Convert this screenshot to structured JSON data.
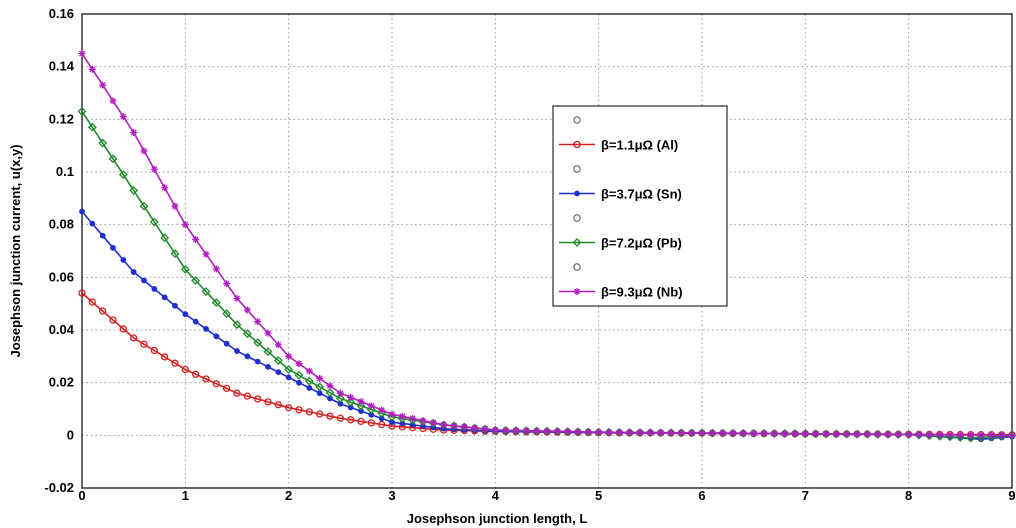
{
  "chart_data": {
    "type": "line",
    "xlabel": "Josephson junction length, L",
    "ylabel": "Josephson junction current, u(x,y)",
    "xlim": [
      0,
      9
    ],
    "ylim": [
      -0.02,
      0.16
    ],
    "xticks": [
      "0",
      "1",
      "2",
      "3",
      "4",
      "5",
      "6",
      "7",
      "8",
      "9"
    ],
    "yticks": [
      "-0.02",
      "0",
      "0.02",
      "0.04",
      "0.06",
      "0.08",
      "0.1",
      "0.12",
      "0.14",
      "0.16"
    ],
    "grid": true,
    "legend_placement": "center-right",
    "legend": [
      {
        "label": "",
        "marker": "open-circle"
      },
      {
        "label": "β=1.1μΩ (Al)",
        "marker": "square"
      },
      {
        "label": "",
        "marker": "open-circle"
      },
      {
        "label": "β=3.7μΩ (Sn)",
        "marker": "dot"
      },
      {
        "label": "",
        "marker": "open-circle"
      },
      {
        "label": "β=7.2μΩ (Pb)",
        "marker": "diamond"
      },
      {
        "label": "",
        "marker": "open-circle"
      },
      {
        "label": "β=9.3μΩ (Nb)",
        "marker": "star"
      }
    ],
    "series": [
      {
        "name": "β=1.1μΩ (Al)",
        "color": "#d42020",
        "x": [
          0,
          0.5,
          1,
          1.5,
          2,
          2.5,
          3,
          3.5,
          4,
          5,
          6,
          7,
          8,
          9
        ],
        "values": [
          0.054,
          0.037,
          0.025,
          0.016,
          0.0105,
          0.0065,
          0.0035,
          0.002,
          0.0015,
          0.001,
          0.0008,
          0.0006,
          0.0004,
          0.0002
        ]
      },
      {
        "name": "β=3.7μΩ (Sn)",
        "color": "#1f2fd0",
        "x": [
          0,
          0.5,
          1,
          1.5,
          2,
          2.5,
          3,
          3.5,
          4,
          5,
          6,
          7,
          8,
          8.7,
          9
        ],
        "values": [
          0.085,
          0.062,
          0.046,
          0.032,
          0.022,
          0.012,
          0.005,
          0.0025,
          0.0015,
          0.001,
          0.0008,
          0.0005,
          0.0003,
          -0.0015,
          -0.0005
        ]
      },
      {
        "name": "β=7.2μΩ (Pb)",
        "color": "#1e8a2a",
        "x": [
          0,
          0.5,
          1,
          1.5,
          2,
          2.5,
          3,
          3.5,
          4,
          5,
          6,
          7,
          8,
          8.6,
          9
        ],
        "values": [
          0.123,
          0.093,
          0.063,
          0.042,
          0.025,
          0.014,
          0.007,
          0.004,
          0.002,
          0.0012,
          0.0009,
          0.0006,
          0.0003,
          -0.001,
          0.0
        ]
      },
      {
        "name": "β=9.3μΩ (Nb)",
        "color": "#b020c0",
        "x": [
          0,
          0.5,
          1,
          1.5,
          2,
          2.5,
          3,
          3.5,
          4,
          5,
          6,
          7,
          8,
          9
        ],
        "values": [
          0.145,
          0.115,
          0.08,
          0.052,
          0.03,
          0.016,
          0.008,
          0.004,
          0.002,
          0.0012,
          0.0009,
          0.0006,
          0.0003,
          0.0
        ]
      }
    ]
  }
}
